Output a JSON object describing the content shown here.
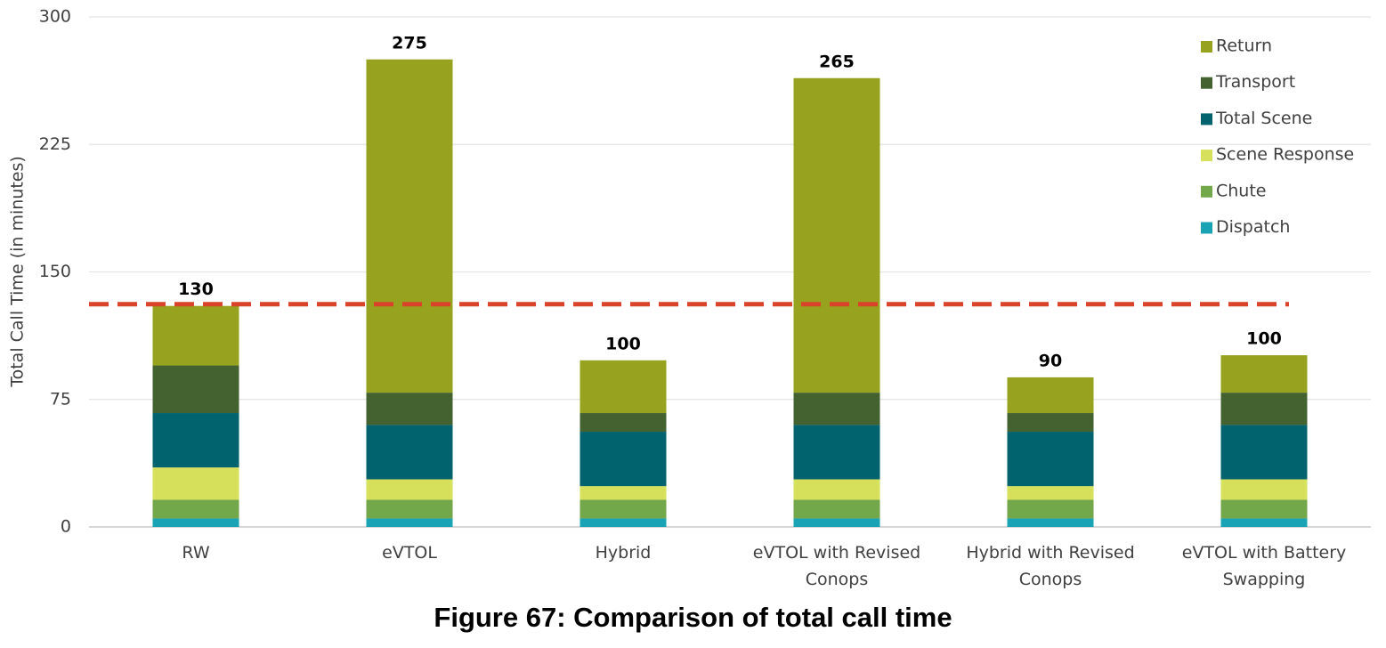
{
  "chart_data": {
    "type": "stacked_bar",
    "title": "Figure 67: Comparison of total call time",
    "y_label": "Total Call Time (in minutes)",
    "categories": [
      "RW",
      "eVTOL",
      "Hybrid",
      "eVTOL with Revised Conops",
      "Hybrid with Revised Conops",
      "eVTOL with Battery Swapping"
    ],
    "series": [
      {
        "name": "Dispatch",
        "color": "#1aa3b4",
        "values": [
          5,
          5,
          5,
          5,
          5,
          5
        ]
      },
      {
        "name": "Chute",
        "color": "#72a84a",
        "values": [
          11,
          11,
          11,
          11,
          11,
          11
        ]
      },
      {
        "name": "Scene Response",
        "color": "#d6e05a",
        "values": [
          19,
          12,
          8,
          12,
          8,
          12
        ]
      },
      {
        "name": "Total Scene",
        "color": "#00636e",
        "values": [
          32,
          32,
          32,
          32,
          32,
          32
        ]
      },
      {
        "name": "Transport",
        "color": "#44622f",
        "values": [
          28,
          19,
          11,
          19,
          11,
          19
        ]
      },
      {
        "name": "Return",
        "color": "#97a31f",
        "values": [
          35,
          196,
          31,
          185,
          21,
          22
        ]
      }
    ],
    "totals": [
      130,
      275,
      100,
      265,
      90,
      100
    ],
    "reference_line": {
      "value": 131,
      "color": "#d9432a"
    },
    "ylim": [
      0,
      300
    ],
    "yticks": [
      0,
      75,
      150,
      225,
      300
    ],
    "grid": true,
    "legend": "upper right"
  }
}
